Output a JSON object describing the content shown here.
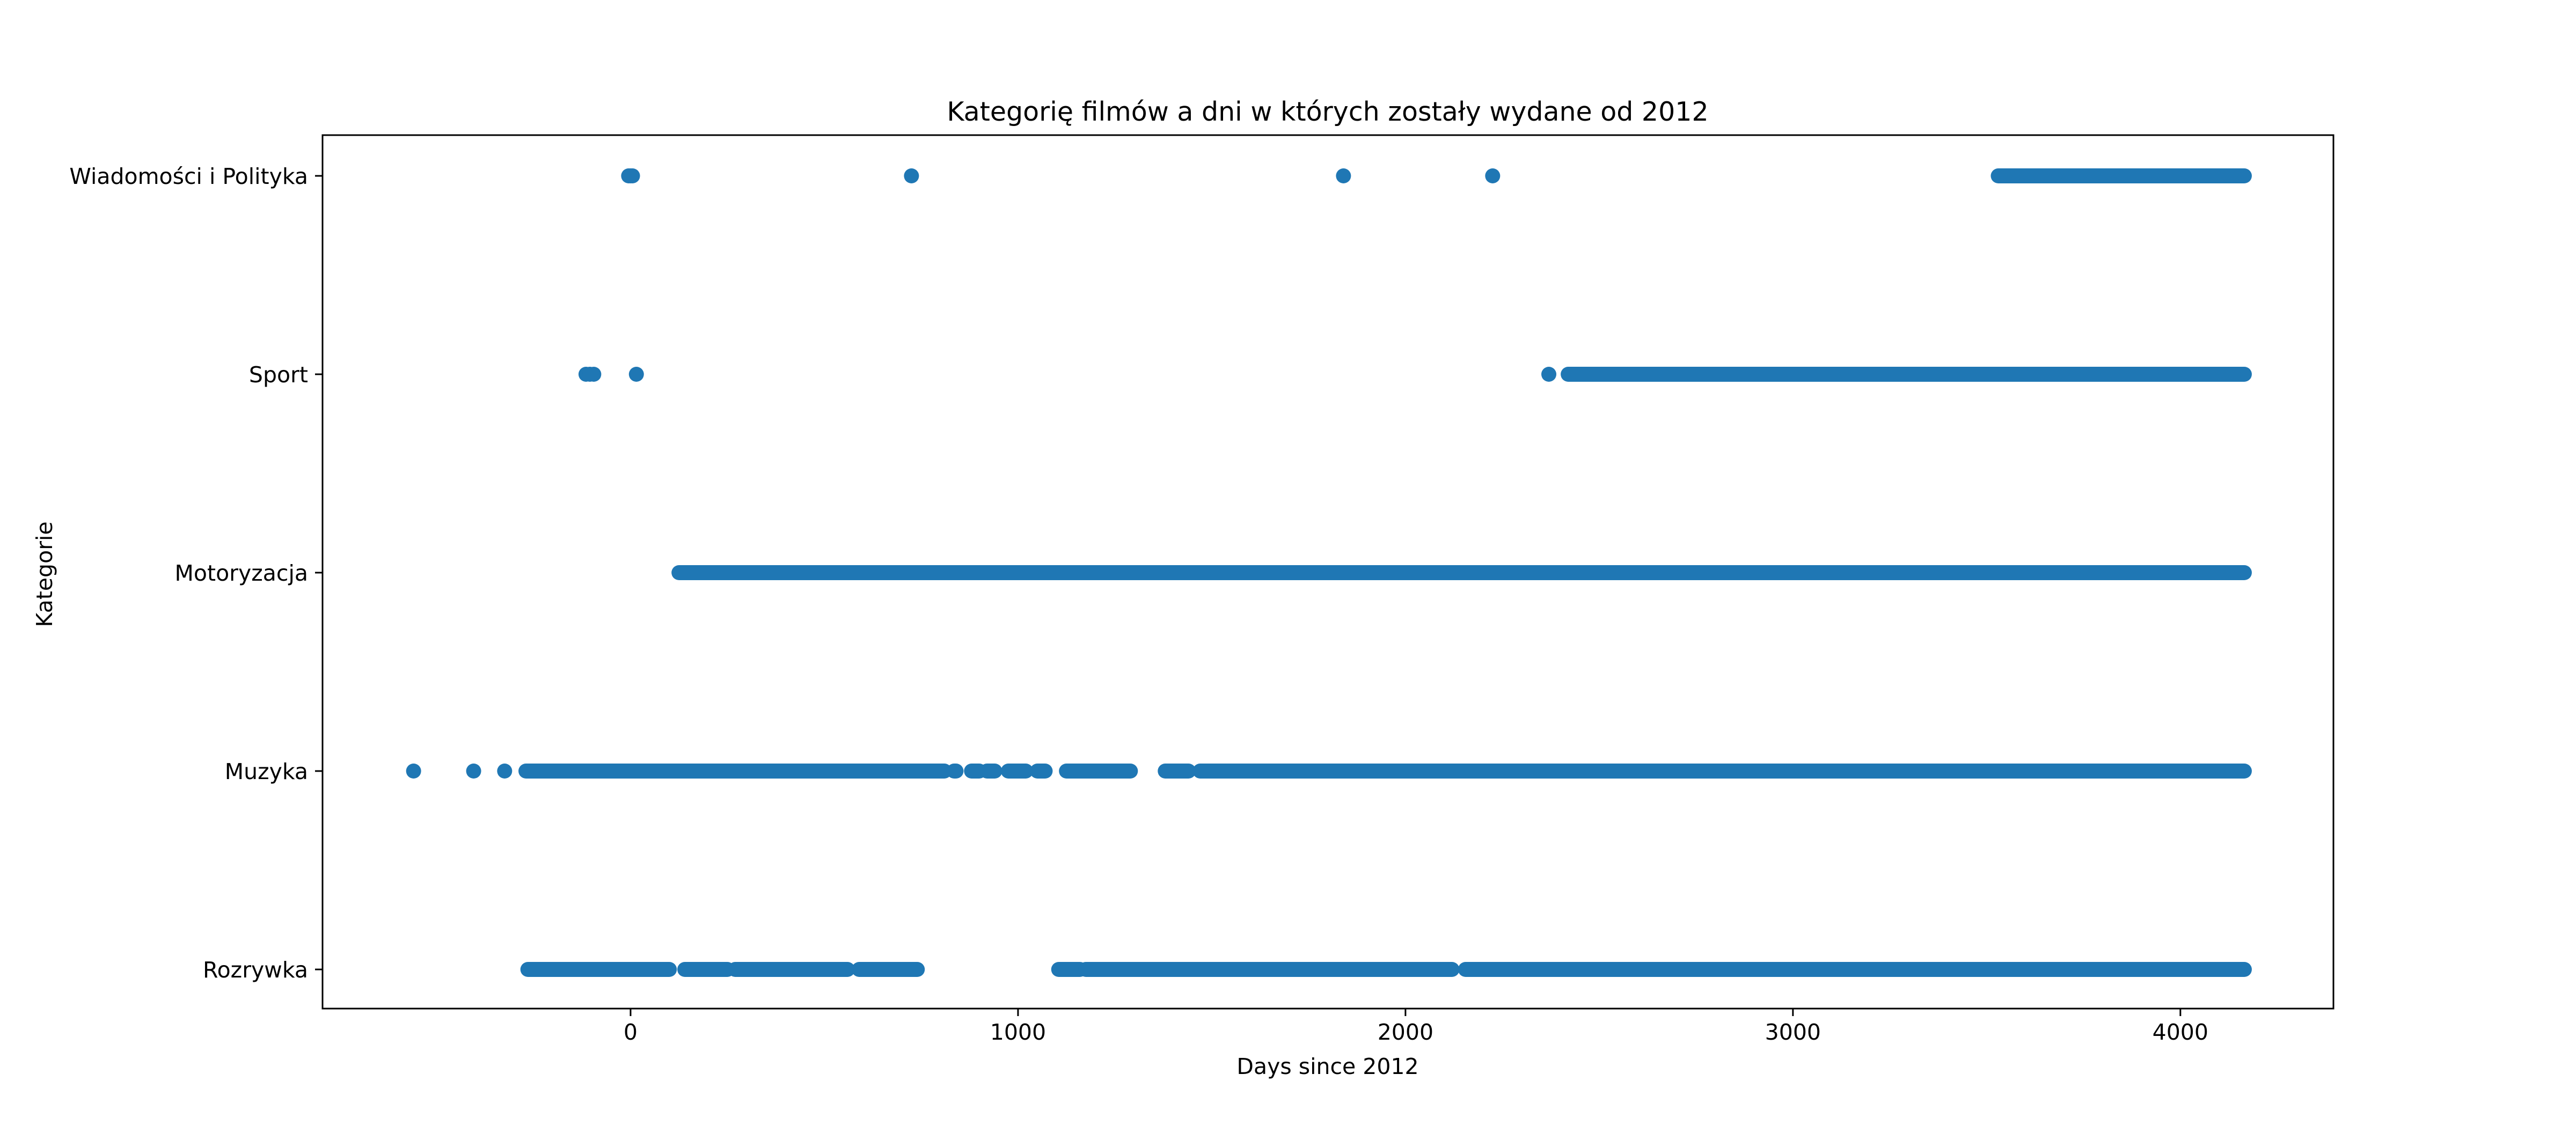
{
  "chart_data": {
    "type": "scatter",
    "title": "Kategorię filmów a dni w których zostały wydane od 2012",
    "xlabel": "Days since 2012",
    "ylabel": "Kategorie",
    "xlim": [
      -795,
      4395
    ],
    "x_ticks": [
      0,
      1000,
      2000,
      3000,
      4000
    ],
    "categories": [
      "Rozrywka",
      "Muzyka",
      "Motoryzacja",
      "Sport",
      "Wiadomości i Polityka"
    ],
    "grid": false,
    "legend": "none",
    "marker_color": "#1f77b4",
    "series": [
      {
        "category": "Wiadomości i Polityka",
        "points": [
          -5,
          0,
          5,
          725,
          1840,
          2225
        ],
        "ranges": [
          [
            3530,
            4165
          ]
        ]
      },
      {
        "category": "Sport",
        "points": [
          -115,
          -105,
          -95,
          15,
          2370
        ],
        "ranges": [
          [
            2420,
            4165
          ]
        ]
      },
      {
        "category": "Motoryzacja",
        "points": [],
        "ranges": [
          [
            125,
            4165
          ]
        ]
      },
      {
        "category": "Muzyka",
        "points": [
          -560,
          -405,
          -325
        ],
        "ranges": [
          [
            -270,
            810
          ],
          [
            835,
            840
          ],
          [
            880,
            900
          ],
          [
            920,
            940
          ],
          [
            975,
            1020
          ],
          [
            1050,
            1070
          ],
          [
            1125,
            1290
          ],
          [
            1380,
            1440
          ],
          [
            1470,
            4165
          ]
        ]
      },
      {
        "category": "Rozrywka",
        "points": [],
        "ranges": [
          [
            -265,
            100
          ],
          [
            140,
            250
          ],
          [
            270,
            560
          ],
          [
            590,
            740
          ],
          [
            1105,
            1160
          ],
          [
            1175,
            2120
          ],
          [
            2155,
            4165
          ]
        ]
      }
    ]
  }
}
